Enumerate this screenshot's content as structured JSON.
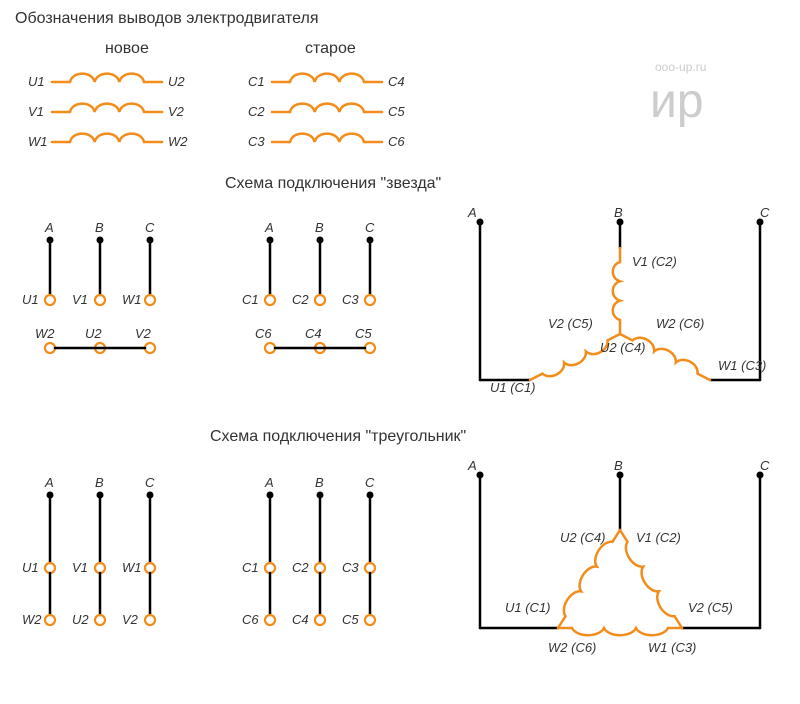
{
  "colors": {
    "orange": "#f28c1a",
    "black": "#000000",
    "text": "#333333",
    "watermark": "#cccccc",
    "bg": "#ffffff"
  },
  "stroke": {
    "coil_width": 2.5,
    "line_width": 2.5,
    "circle_r": 5
  },
  "titles": {
    "main": "Обозначения выводов электродвигателя",
    "col_new": "новое",
    "col_old": "старое",
    "star": "Схема подключения \"звезда\"",
    "delta": "Схема подключения \"треугольник\""
  },
  "watermark": {
    "url": "ooo-up.ru",
    "logo": "ир"
  },
  "legend": {
    "new_pairs": [
      [
        "U1",
        "U2"
      ],
      [
        "V1",
        "V2"
      ],
      [
        "W1",
        "W2"
      ]
    ],
    "old_pairs": [
      [
        "C1",
        "C4"
      ],
      [
        "C2",
        "C5"
      ],
      [
        "C3",
        "C6"
      ]
    ]
  },
  "terminals": {
    "phases": [
      "A",
      "B",
      "C"
    ],
    "new_top": [
      "U1",
      "V1",
      "W1"
    ],
    "new_bot": [
      "W2",
      "U2",
      "V2"
    ],
    "old_top": [
      "C1",
      "C2",
      "C3"
    ],
    "old_bot": [
      "C6",
      "C4",
      "C5"
    ]
  },
  "star_labels": {
    "top": "V1 (C2)",
    "left_mid": "V2 (C5)",
    "center": "U2 (C4)",
    "right_mid": "W2 (C6)",
    "left_bot": "U1 (C1)",
    "right_bot": "W1 (C3)"
  },
  "delta_labels": {
    "top_l": "U2 (C4)",
    "top_r": "V1 (C2)",
    "mid_l": "U1 (C1)",
    "mid_r": "V2 (C5)",
    "bot_l": "W2 (C6)",
    "bot_r": "W1 (C3)"
  }
}
